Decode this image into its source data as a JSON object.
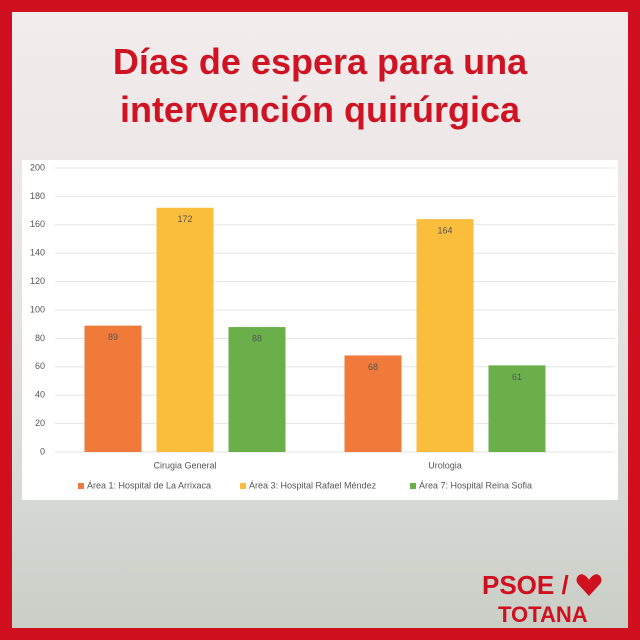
{
  "chart_data": {
    "type": "bar",
    "title": "Días de espera para una intervención quirúrgica",
    "categories": [
      "Cirugia General",
      "Urologia"
    ],
    "series": [
      {
        "name": "Área 1: Hospital de La Arrixaca",
        "color": "#f07a3a",
        "values": [
          89,
          68
        ]
      },
      {
        "name": "Área 3: Hospital Rafael Méndez",
        "color": "#fbbd3c",
        "values": [
          172,
          164
        ]
      },
      {
        "name": "Área 7: Hospital Reina Sofia",
        "color": "#6aaf4a",
        "values": [
          88,
          61
        ]
      }
    ],
    "ylim": [
      0,
      200
    ],
    "yticks": [
      0,
      20,
      40,
      60,
      80,
      100,
      120,
      140,
      160,
      180,
      200
    ],
    "grid": true,
    "legend": "bottom"
  },
  "logo": {
    "text": "PSOE /",
    "sub": "TOTANA"
  }
}
